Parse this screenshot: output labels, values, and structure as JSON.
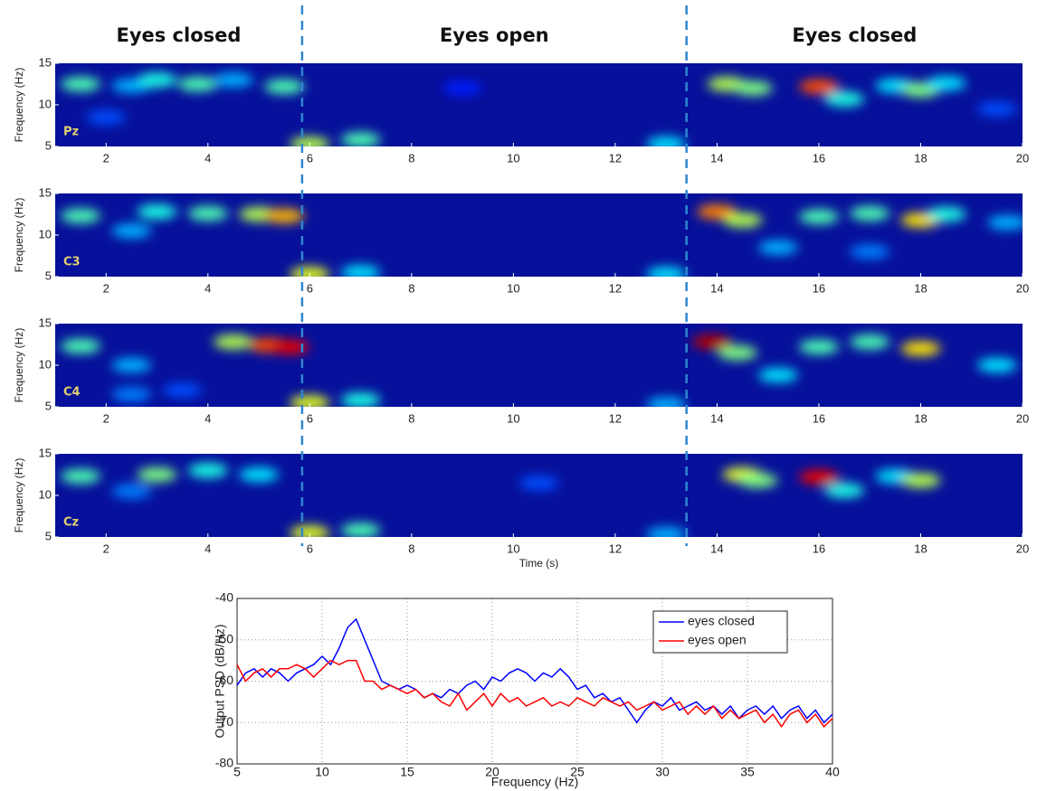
{
  "sections": {
    "labels": [
      "Eyes closed",
      "Eyes open",
      "Eyes closed"
    ],
    "boundaries": [
      5.85,
      13.4
    ]
  },
  "chart_data": [
    {
      "type": "heatmap",
      "colormap": "jet",
      "label": "Pz",
      "ylabel": "Frequency (Hz)",
      "xlim": [
        1,
        20
      ],
      "xticks": [
        2,
        4,
        6,
        8,
        10,
        12,
        14,
        16,
        18,
        20
      ],
      "ylim": [
        5,
        15
      ],
      "yticks": [
        5,
        10,
        15
      ],
      "x": [
        1.5,
        2.5,
        3,
        3.8,
        5.5,
        4.5,
        6,
        7,
        13,
        14.2,
        14.7,
        16,
        16.5,
        17.5,
        18,
        18.5,
        2,
        9,
        19.5
      ],
      "y": [
        12.5,
        12.3,
        13,
        12.5,
        12.2,
        13,
        5.3,
        5.8,
        5.3,
        12.5,
        12,
        12.2,
        10.7,
        12.3,
        11.8,
        12.6,
        8.5,
        12,
        9.5
      ],
      "values": [
        0.45,
        0.3,
        0.4,
        0.45,
        0.45,
        0.3,
        0.55,
        0.45,
        0.35,
        0.55,
        0.5,
        0.8,
        0.4,
        0.35,
        0.5,
        0.35,
        0.2,
        0.15,
        0.2
      ]
    },
    {
      "type": "heatmap",
      "colormap": "jet",
      "label": "C3",
      "ylabel": "Frequency (Hz)",
      "xlim": [
        1,
        20
      ],
      "xticks": [
        2,
        4,
        6,
        8,
        10,
        12,
        14,
        16,
        18,
        20
      ],
      "ylim": [
        5,
        15
      ],
      "yticks": [
        5,
        10,
        15
      ],
      "x": [
        1.5,
        2.5,
        3,
        4,
        5,
        5.5,
        6,
        7,
        13,
        14,
        14.5,
        15.2,
        16,
        17,
        18,
        18.5,
        19.7,
        17
      ],
      "y": [
        12.3,
        10.5,
        12.8,
        12.6,
        12.5,
        12.3,
        5.3,
        5.5,
        5.3,
        12.8,
        11.8,
        8.5,
        12.2,
        12.6,
        11.8,
        12.5,
        11.5,
        8
      ],
      "values": [
        0.45,
        0.3,
        0.4,
        0.45,
        0.55,
        0.7,
        0.6,
        0.35,
        0.35,
        0.75,
        0.55,
        0.3,
        0.45,
        0.45,
        0.65,
        0.4,
        0.3,
        0.25
      ]
    },
    {
      "type": "heatmap",
      "colormap": "jet",
      "label": "C4",
      "ylabel": "Frequency (Hz)",
      "xlim": [
        1,
        20
      ],
      "xticks": [
        2,
        4,
        6,
        8,
        10,
        12,
        14,
        16,
        18,
        20
      ],
      "ylim": [
        5,
        15
      ],
      "yticks": [
        5,
        10,
        15
      ],
      "x": [
        1.5,
        2.5,
        4.5,
        5.2,
        5.6,
        6,
        7,
        13,
        13.9,
        14.4,
        15.2,
        16,
        17,
        18,
        19.5,
        2.5,
        3.5
      ],
      "y": [
        12.3,
        10,
        12.8,
        12.4,
        12.2,
        5.5,
        5.8,
        5.3,
        12.8,
        11.5,
        8.8,
        12.2,
        12.8,
        12,
        10,
        6.5,
        7
      ],
      "values": [
        0.45,
        0.3,
        0.55,
        0.8,
        0.9,
        0.6,
        0.4,
        0.3,
        0.95,
        0.5,
        0.35,
        0.45,
        0.45,
        0.65,
        0.35,
        0.25,
        0.2
      ]
    },
    {
      "type": "heatmap",
      "colormap": "jet",
      "label": "Cz",
      "ylabel": "Frequency (Hz)",
      "xlabel": "Time (s)",
      "xlim": [
        1,
        20
      ],
      "xticks": [
        2,
        4,
        6,
        8,
        10,
        12,
        14,
        16,
        18,
        20
      ],
      "ylim": [
        5,
        15
      ],
      "yticks": [
        5,
        10,
        15
      ],
      "x": [
        1.5,
        3,
        4,
        5,
        6,
        7,
        13,
        14.5,
        14.8,
        16,
        16.5,
        17.5,
        18,
        2.5,
        10.5
      ],
      "y": [
        12.3,
        12.5,
        13,
        12.5,
        5.5,
        5.8,
        5.3,
        12.5,
        11.8,
        12.2,
        10.6,
        12.3,
        11.8,
        10.5,
        11.5
      ],
      "values": [
        0.45,
        0.5,
        0.4,
        0.35,
        0.6,
        0.45,
        0.3,
        0.6,
        0.5,
        0.9,
        0.4,
        0.35,
        0.55,
        0.25,
        0.2
      ]
    },
    {
      "type": "line",
      "xlabel": "Frequency (Hz)",
      "ylabel": "Output PSD (dB/Hz)",
      "grid": true,
      "legend": "upper right",
      "xlim": [
        5,
        40
      ],
      "xticks": [
        5,
        10,
        15,
        20,
        25,
        30,
        35,
        40
      ],
      "ylim": [
        -80,
        -40
      ],
      "yticks": [
        -80,
        -70,
        -60,
        -50,
        -40
      ],
      "x": [
        5,
        5.5,
        6,
        6.5,
        7,
        7.5,
        8,
        8.5,
        9,
        9.5,
        10,
        10.5,
        11,
        11.5,
        12,
        12.5,
        13,
        13.5,
        14,
        14.5,
        15,
        15.5,
        16,
        16.5,
        17,
        17.5,
        18,
        18.5,
        19,
        19.5,
        20,
        20.5,
        21,
        21.5,
        22,
        22.5,
        23,
        23.5,
        24,
        24.5,
        25,
        25.5,
        26,
        26.5,
        27,
        27.5,
        28,
        28.5,
        29,
        29.5,
        30,
        30.5,
        31,
        31.5,
        32,
        32.5,
        33,
        33.5,
        34,
        34.5,
        35,
        35.5,
        36,
        36.5,
        37,
        37.5,
        38,
        38.5,
        39,
        39.5,
        40
      ],
      "series": [
        {
          "name": "eyes closed",
          "color": "#0000ff",
          "values": [
            -61,
            -58,
            -57,
            -59,
            -57,
            -58,
            -60,
            -58,
            -57,
            -56,
            -54,
            -56,
            -52,
            -47,
            -45,
            -50,
            -55,
            -60,
            -61,
            -62,
            -61,
            -62,
            -64,
            -63,
            -64,
            -62,
            -63,
            -61,
            -60,
            -62,
            -59,
            -60,
            -58,
            -57,
            -58,
            -60,
            -58,
            -59,
            -57,
            -59,
            -62,
            -61,
            -64,
            -63,
            -65,
            -64,
            -67,
            -70,
            -67,
            -65,
            -66,
            -64,
            -67,
            -66,
            -65,
            -67,
            -66,
            -68,
            -66,
            -69,
            -67,
            -66,
            -68,
            -66,
            -69,
            -67,
            -66,
            -69,
            -67,
            -70,
            -68
          ]
        },
        {
          "name": "eyes open",
          "color": "#ff0000",
          "values": [
            -56,
            -60,
            -58,
            -57,
            -59,
            -57,
            -57,
            -56,
            -57,
            -59,
            -57,
            -55,
            -56,
            -55,
            -55,
            -60,
            -60,
            -62,
            -61,
            -62,
            -63,
            -62,
            -64,
            -63,
            -65,
            -66,
            -63,
            -67,
            -65,
            -63,
            -66,
            -63,
            -65,
            -64,
            -66,
            -65,
            -64,
            -66,
            -65,
            -66,
            -64,
            -65,
            -66,
            -64,
            -65,
            -66,
            -65,
            -67,
            -66,
            -65,
            -67,
            -66,
            -65,
            -68,
            -66,
            -68,
            -66,
            -69,
            -67,
            -69,
            -68,
            -67,
            -70,
            -68,
            -71,
            -68,
            -67,
            -70,
            -68,
            -71,
            -69
          ]
        }
      ]
    }
  ]
}
